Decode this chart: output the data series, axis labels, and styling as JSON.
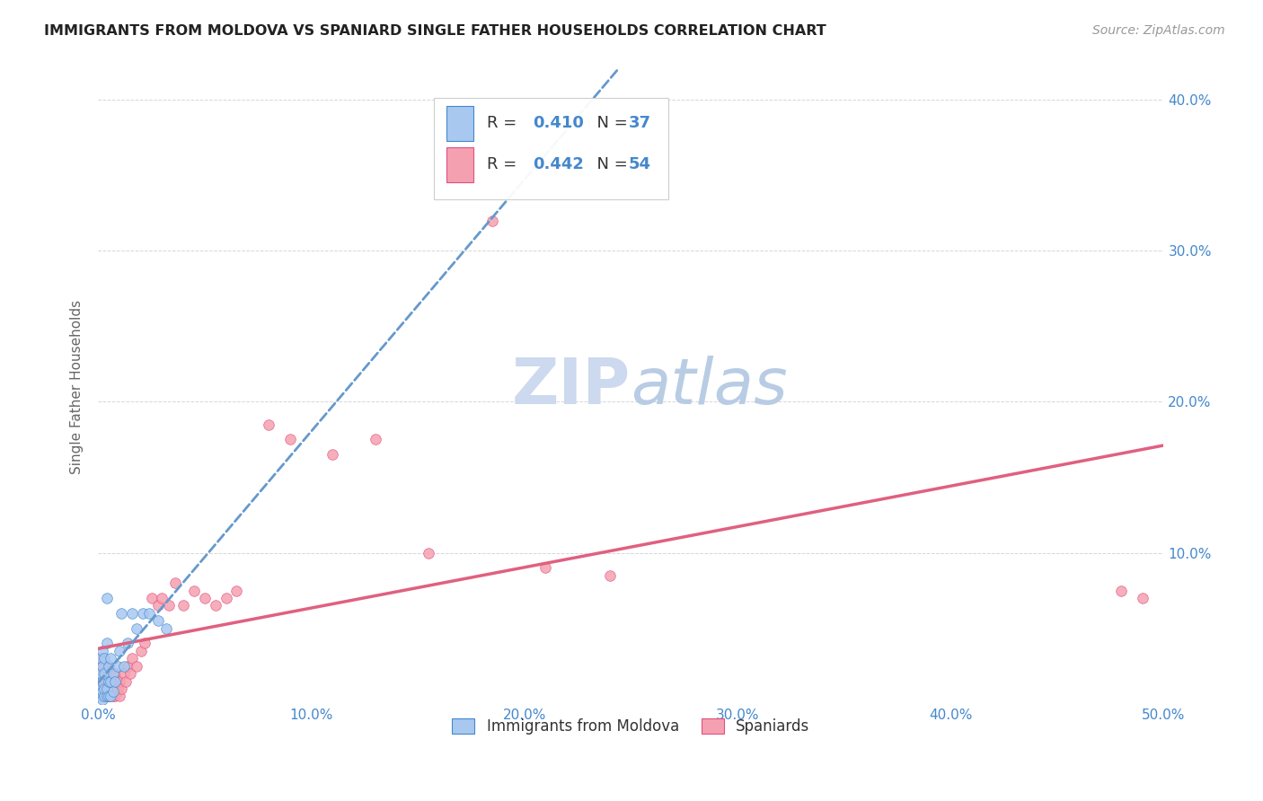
{
  "title": "IMMIGRANTS FROM MOLDOVA VS SPANIARD SINGLE FATHER HOUSEHOLDS CORRELATION CHART",
  "source": "Source: ZipAtlas.com",
  "ylabel": "Single Father Households",
  "xlim": [
    0.0,
    0.5
  ],
  "ylim": [
    0.0,
    0.42
  ],
  "xticks": [
    0.0,
    0.1,
    0.2,
    0.3,
    0.4,
    0.5
  ],
  "yticks": [
    0.0,
    0.1,
    0.2,
    0.3,
    0.4
  ],
  "xtick_labels": [
    "0.0%",
    "10.0%",
    "20.0%",
    "30.0%",
    "40.0%",
    "50.0%"
  ],
  "right_ytick_labels": [
    "",
    "10.0%",
    "20.0%",
    "30.0%",
    "40.0%"
  ],
  "legend_label1": "Immigrants from Moldova",
  "legend_label2": "Spaniards",
  "R1": 0.41,
  "N1": 37,
  "R2": 0.442,
  "N2": 54,
  "color_blue": "#a8c8f0",
  "color_pink": "#f5a0b0",
  "color_blue_text": "#4488cc",
  "color_pink_text": "#e05080",
  "line_blue": "#6699cc",
  "line_pink": "#e06080",
  "background": "#ffffff",
  "grid_color": "#cccccc",
  "watermark_zip_color": "#ccd9ee",
  "watermark_atlas_color": "#b8c8e8",
  "moldova_x": [
    0.001,
    0.001,
    0.001,
    0.001,
    0.002,
    0.002,
    0.002,
    0.002,
    0.002,
    0.003,
    0.003,
    0.003,
    0.003,
    0.004,
    0.004,
    0.004,
    0.004,
    0.005,
    0.005,
    0.005,
    0.006,
    0.006,
    0.006,
    0.007,
    0.007,
    0.008,
    0.009,
    0.01,
    0.011,
    0.012,
    0.014,
    0.016,
    0.018,
    0.021,
    0.024,
    0.028,
    0.032
  ],
  "moldova_y": [
    0.005,
    0.01,
    0.02,
    0.03,
    0.003,
    0.008,
    0.015,
    0.025,
    0.035,
    0.005,
    0.01,
    0.02,
    0.03,
    0.005,
    0.01,
    0.04,
    0.07,
    0.005,
    0.015,
    0.025,
    0.005,
    0.015,
    0.03,
    0.008,
    0.02,
    0.015,
    0.025,
    0.035,
    0.06,
    0.025,
    0.04,
    0.06,
    0.05,
    0.06,
    0.06,
    0.055,
    0.05
  ],
  "spaniards_x": [
    0.001,
    0.001,
    0.001,
    0.002,
    0.002,
    0.002,
    0.002,
    0.003,
    0.003,
    0.003,
    0.004,
    0.004,
    0.005,
    0.005,
    0.005,
    0.006,
    0.006,
    0.007,
    0.007,
    0.008,
    0.008,
    0.009,
    0.01,
    0.01,
    0.011,
    0.012,
    0.013,
    0.014,
    0.015,
    0.016,
    0.018,
    0.02,
    0.022,
    0.025,
    0.028,
    0.03,
    0.033,
    0.036,
    0.04,
    0.045,
    0.05,
    0.055,
    0.06,
    0.065,
    0.08,
    0.09,
    0.11,
    0.13,
    0.155,
    0.185,
    0.21,
    0.24,
    0.48,
    0.49
  ],
  "spaniards_y": [
    0.005,
    0.015,
    0.025,
    0.005,
    0.01,
    0.02,
    0.03,
    0.005,
    0.015,
    0.025,
    0.005,
    0.015,
    0.005,
    0.015,
    0.025,
    0.005,
    0.02,
    0.005,
    0.015,
    0.005,
    0.02,
    0.01,
    0.005,
    0.015,
    0.01,
    0.02,
    0.015,
    0.025,
    0.02,
    0.03,
    0.025,
    0.035,
    0.04,
    0.07,
    0.065,
    0.07,
    0.065,
    0.08,
    0.065,
    0.075,
    0.07,
    0.065,
    0.07,
    0.075,
    0.185,
    0.175,
    0.165,
    0.175,
    0.1,
    0.32,
    0.09,
    0.085,
    0.075,
    0.07
  ]
}
